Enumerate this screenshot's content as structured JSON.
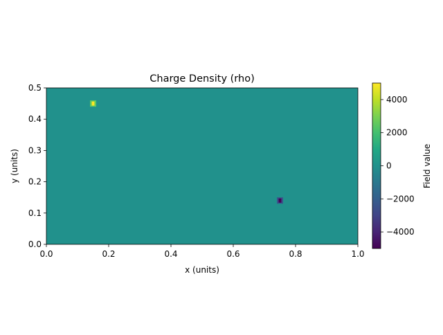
{
  "chart_data": {
    "type": "heatmap",
    "title": "Charge Density (rho)",
    "xlabel": "x (units)",
    "ylabel": "y (units)",
    "xlim": [
      0.0,
      1.0
    ],
    "ylim": [
      0.0,
      0.5
    ],
    "x_ticks": [
      "0.0",
      "0.2",
      "0.4",
      "0.6",
      "0.8",
      "1.0"
    ],
    "y_ticks": [
      "0.0",
      "0.1",
      "0.2",
      "0.3",
      "0.4",
      "0.5"
    ],
    "background_value": 0,
    "hotspots": [
      {
        "label": "positive",
        "center_x": 0.15,
        "center_y": 0.45,
        "half_width_x": 0.01,
        "half_width_y": 0.01,
        "peak_value": 5000,
        "edge_value": 2500
      },
      {
        "label": "negative",
        "center_x": 0.75,
        "center_y": 0.14,
        "half_width_x": 0.01,
        "half_width_y": 0.01,
        "peak_value": -5000,
        "edge_value": -2500
      }
    ],
    "colorbar": {
      "label": "Field value",
      "min": -5000,
      "max": 5000,
      "ticks": [
        4000,
        2000,
        0,
        -2000,
        -4000
      ],
      "tick_labels": [
        "4000",
        "2000",
        "0",
        "−2000",
        "−4000"
      ],
      "colormap": "viridis"
    }
  }
}
